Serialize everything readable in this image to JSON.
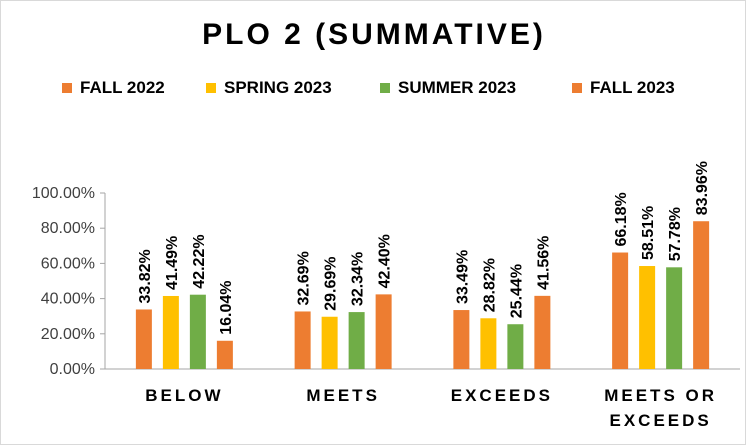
{
  "chart_data": {
    "type": "bar",
    "title": "PLO 2 (SUMMATIVE)",
    "xlabel": "",
    "ylabel": "",
    "ylim": [
      0,
      100
    ],
    "yticks": [
      "0.00%",
      "20.00%",
      "40.00%",
      "60.00%",
      "80.00%",
      "100.00%"
    ],
    "categories": [
      [
        "BELOW"
      ],
      [
        "MEETS"
      ],
      [
        "EXCEEDS"
      ],
      [
        "MEETS OR",
        "EXCEEDS"
      ]
    ],
    "series": [
      {
        "name": "FALL 2022",
        "color": "#ED7D31",
        "values": [
          33.82,
          32.69,
          33.49,
          66.18
        ],
        "labels": [
          "33.82%",
          "32.69%",
          "33.49%",
          "66.18%"
        ]
      },
      {
        "name": "SPRING 2023",
        "color": "#FFC000",
        "values": [
          41.49,
          29.69,
          28.82,
          58.51
        ],
        "labels": [
          "41.49%",
          "29.69%",
          "28.82%",
          "58.51%"
        ]
      },
      {
        "name": "SUMMER 2023",
        "color": "#70AD47",
        "values": [
          42.22,
          32.34,
          25.44,
          57.78
        ],
        "labels": [
          "42.22%",
          "32.34%",
          "25.44%",
          "57.78%"
        ]
      },
      {
        "name": "FALL 2023",
        "color": "#ED7D31",
        "values": [
          16.04,
          42.4,
          41.56,
          83.96
        ],
        "labels": [
          "16.04%",
          "42.40%",
          "41.56%",
          "83.96%"
        ]
      }
    ],
    "grid": false,
    "legend_position": "top"
  }
}
